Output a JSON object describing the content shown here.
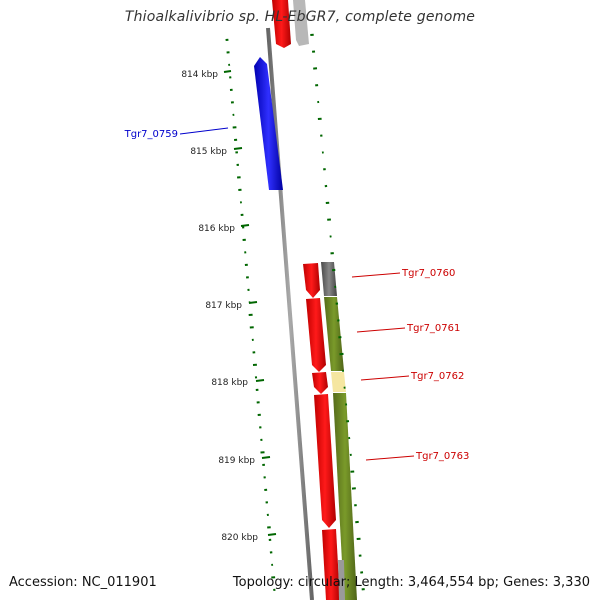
{
  "title": "Thioalkalivibrio sp. HL-EbGR7, complete genome",
  "accession": "Accession: NC_011901",
  "topology": "Topology: circular; Length: 3,464,554 bp; Genes: 3,330",
  "ticks": [
    "814 kbp",
    "815 kbp",
    "816 kbp",
    "817 kbp",
    "818 kbp",
    "819 kbp",
    "820 kbp"
  ],
  "genes": [
    {
      "name": "Tgr7_0759",
      "color": "#0000cc"
    },
    {
      "name": "Tgr7_0760",
      "color": "#cc0000"
    },
    {
      "name": "Tgr7_0761",
      "color": "#cc0000"
    },
    {
      "name": "Tgr7_0762",
      "color": "#cc0000"
    },
    {
      "name": "Tgr7_0763",
      "color": "#cc0000"
    }
  ],
  "colors": {
    "forward_gene": "#ff0000",
    "reverse_gene": "#0000ff",
    "backbone": "#888888",
    "gc_skew": "#006600",
    "cog_olive": "#6b8e23",
    "cog_pale": "#f5e6a0",
    "cog_gray": "#666666"
  }
}
